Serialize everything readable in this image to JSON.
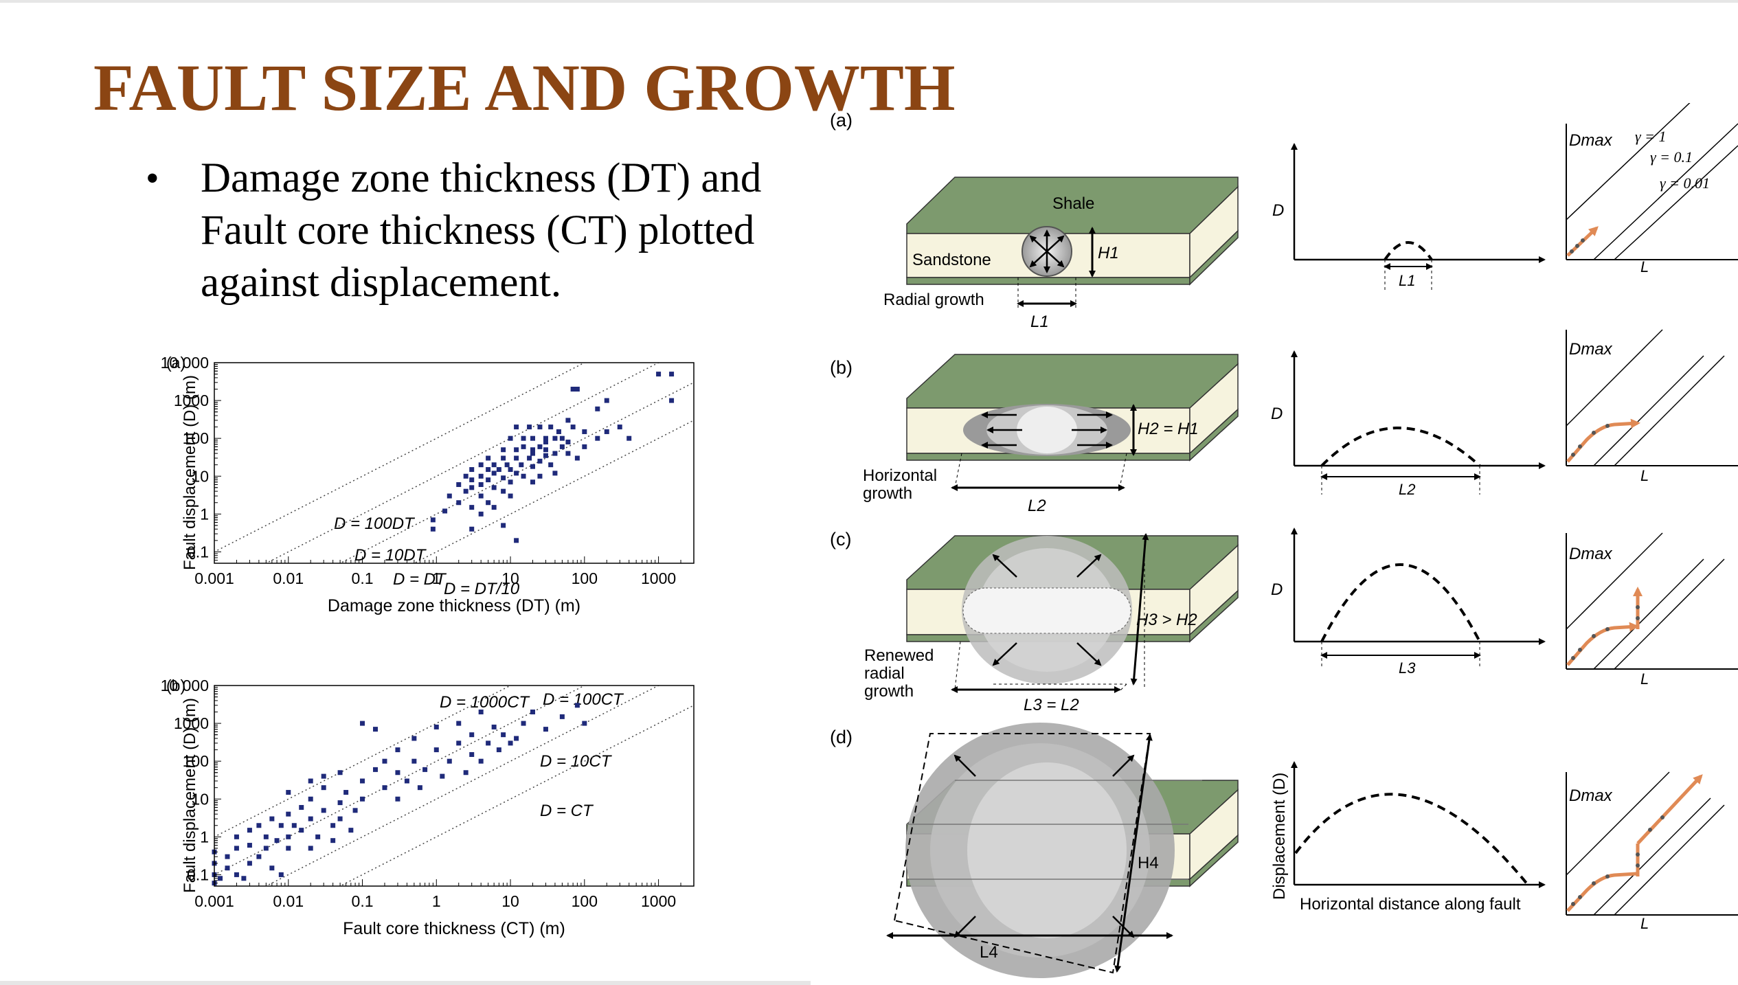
{
  "slide": {
    "title": "FAULT SIZE AND GROWTH",
    "bullet_lines": [
      "Damage zone thickness (DT) and",
      "Fault core thickness (CT) plotted",
      "against displacement."
    ]
  },
  "colors": {
    "title": "#8b4513",
    "points": "#1f2a7a",
    "shale": "#7d9a6e",
    "sandstone": "#f6f3de",
    "arrow_orange": "#e08a55"
  },
  "chart_data": [
    {
      "type": "scatter",
      "panel_label": "(a)",
      "xlabel": "Damage zone thickness (DT) (m)",
      "ylabel": "Fault displacement (D) (m)",
      "xscale": "log",
      "yscale": "log",
      "xlim": [
        0.001,
        3000
      ],
      "ylim": [
        0.05,
        10000
      ],
      "xticks": [
        "0.001",
        "0.01",
        "0.1",
        "1",
        "10",
        "100",
        "1000"
      ],
      "yticks": [
        "0.1",
        "1",
        "10",
        "100",
        "1000",
        "10 000"
      ],
      "lines": [
        {
          "label": "D = 100DT",
          "ratio": 100
        },
        {
          "label": "D = 10DT",
          "ratio": 10
        },
        {
          "label": "D = DT",
          "ratio": 1
        },
        {
          "label": "D = DT/10",
          "ratio": 0.1
        }
      ],
      "points": [
        [
          0.9,
          0.4
        ],
        [
          0.9,
          0.7
        ],
        [
          1.3,
          1.2
        ],
        [
          2,
          2
        ],
        [
          1.5,
          3
        ],
        [
          2.5,
          4
        ],
        [
          3,
          5
        ],
        [
          2,
          6
        ],
        [
          4,
          6
        ],
        [
          3,
          8
        ],
        [
          5,
          8
        ],
        [
          2.5,
          10
        ],
        [
          4,
          10
        ],
        [
          6,
          12
        ],
        [
          8,
          9
        ],
        [
          3,
          15
        ],
        [
          5,
          15
        ],
        [
          7,
          15
        ],
        [
          10,
          15
        ],
        [
          12,
          12
        ],
        [
          4,
          20
        ],
        [
          6,
          20
        ],
        [
          9,
          20
        ],
        [
          14,
          20
        ],
        [
          20,
          18
        ],
        [
          5,
          30
        ],
        [
          8,
          30
        ],
        [
          12,
          30
        ],
        [
          18,
          30
        ],
        [
          25,
          25
        ],
        [
          30,
          35
        ],
        [
          8,
          50
        ],
        [
          12,
          50
        ],
        [
          20,
          50
        ],
        [
          30,
          50
        ],
        [
          40,
          40
        ],
        [
          50,
          60
        ],
        [
          10,
          100
        ],
        [
          15,
          100
        ],
        [
          20,
          100
        ],
        [
          30,
          100
        ],
        [
          40,
          100
        ],
        [
          50,
          100
        ],
        [
          60,
          80
        ],
        [
          12,
          200
        ],
        [
          18,
          200
        ],
        [
          25,
          200
        ],
        [
          35,
          200
        ],
        [
          45,
          150
        ],
        [
          70,
          200
        ],
        [
          100,
          150
        ],
        [
          60,
          300
        ],
        [
          70,
          2000
        ],
        [
          80,
          2000
        ],
        [
          150,
          600
        ],
        [
          200,
          1000
        ],
        [
          1000,
          5000
        ],
        [
          1500,
          5000
        ],
        [
          1500,
          1000
        ],
        [
          3,
          1.5
        ],
        [
          4,
          3
        ],
        [
          6,
          5
        ],
        [
          10,
          7
        ],
        [
          15,
          10
        ],
        [
          20,
          7
        ],
        [
          25,
          10
        ],
        [
          35,
          20
        ],
        [
          40,
          12
        ],
        [
          60,
          40
        ],
        [
          80,
          30
        ],
        [
          100,
          60
        ],
        [
          150,
          100
        ],
        [
          200,
          150
        ],
        [
          300,
          200
        ],
        [
          400,
          100
        ],
        [
          20,
          40
        ],
        [
          25,
          60
        ],
        [
          30,
          80
        ],
        [
          15,
          60
        ],
        [
          8,
          4
        ],
        [
          10,
          3
        ],
        [
          5,
          2
        ],
        [
          6,
          1.5
        ],
        [
          4,
          1
        ],
        [
          8,
          0.5
        ],
        [
          12,
          0.2
        ],
        [
          3,
          0.4
        ]
      ]
    },
    {
      "type": "scatter",
      "panel_label": "(b)",
      "xlabel": "Fault core thickness (CT) (m)",
      "ylabel": "Fault displacement (D) (m)",
      "xscale": "log",
      "yscale": "log",
      "xlim": [
        0.001,
        3000
      ],
      "ylim": [
        0.05,
        10000
      ],
      "xticks": [
        "0.001",
        "0.01",
        "0.1",
        "1",
        "10",
        "100",
        "1000"
      ],
      "yticks": [
        "0.1",
        "1",
        "10",
        "100",
        "1000",
        "10 000"
      ],
      "lines": [
        {
          "label": "D = 1000CT",
          "ratio": 1000
        },
        {
          "label": "D = 100CT",
          "ratio": 100
        },
        {
          "label": "D = 10CT",
          "ratio": 10
        },
        {
          "label": "D = CT",
          "ratio": 1
        }
      ],
      "points": [
        [
          0.001,
          0.1
        ],
        [
          0.001,
          0.2
        ],
        [
          0.001,
          0.4
        ],
        [
          0.0012,
          0.08
        ],
        [
          0.0015,
          0.15
        ],
        [
          0.0015,
          0.3
        ],
        [
          0.002,
          0.1
        ],
        [
          0.002,
          0.5
        ],
        [
          0.002,
          1
        ],
        [
          0.003,
          0.2
        ],
        [
          0.003,
          0.6
        ],
        [
          0.003,
          1.5
        ],
        [
          0.004,
          0.3
        ],
        [
          0.004,
          2
        ],
        [
          0.005,
          0.5
        ],
        [
          0.005,
          1
        ],
        [
          0.006,
          3
        ],
        [
          0.007,
          0.8
        ],
        [
          0.008,
          2
        ],
        [
          0.01,
          0.5
        ],
        [
          0.01,
          1
        ],
        [
          0.01,
          4
        ],
        [
          0.012,
          2
        ],
        [
          0.015,
          1.5
        ],
        [
          0.015,
          6
        ],
        [
          0.02,
          3
        ],
        [
          0.02,
          10
        ],
        [
          0.025,
          1
        ],
        [
          0.03,
          5
        ],
        [
          0.03,
          20
        ],
        [
          0.04,
          2
        ],
        [
          0.05,
          8
        ],
        [
          0.05,
          3
        ],
        [
          0.06,
          15
        ],
        [
          0.08,
          5
        ],
        [
          0.1,
          30
        ],
        [
          0.1,
          10
        ],
        [
          0.15,
          60
        ],
        [
          0.2,
          20
        ],
        [
          0.2,
          100
        ],
        [
          0.3,
          50
        ],
        [
          0.3,
          200
        ],
        [
          0.4,
          30
        ],
        [
          0.5,
          100
        ],
        [
          0.5,
          400
        ],
        [
          0.7,
          60
        ],
        [
          1,
          200
        ],
        [
          1,
          800
        ],
        [
          1.5,
          100
        ],
        [
          2,
          300
        ],
        [
          2,
          1000
        ],
        [
          3,
          150
        ],
        [
          3,
          500
        ],
        [
          4,
          2000
        ],
        [
          5,
          300
        ],
        [
          6,
          800
        ],
        [
          8,
          500
        ],
        [
          10,
          300
        ],
        [
          15,
          1000
        ],
        [
          20,
          2000
        ],
        [
          30,
          700
        ],
        [
          50,
          1500
        ],
        [
          80,
          3000
        ],
        [
          100,
          1000
        ],
        [
          0.1,
          1000
        ],
        [
          0.15,
          700
        ],
        [
          0.05,
          50
        ],
        [
          0.008,
          0.1
        ],
        [
          0.006,
          0.15
        ],
        [
          0.0025,
          0.08
        ],
        [
          0.001,
          0.06
        ],
        [
          0.02,
          0.5
        ],
        [
          0.04,
          0.8
        ],
        [
          0.07,
          1.5
        ],
        [
          0.3,
          10
        ],
        [
          0.6,
          20
        ],
        [
          1.2,
          40
        ],
        [
          2.5,
          50
        ],
        [
          4,
          100
        ],
        [
          7,
          200
        ],
        [
          12,
          400
        ],
        [
          0.02,
          30
        ],
        [
          0.03,
          40
        ],
        [
          0.01,
          15
        ]
      ]
    }
  ],
  "right_figure": {
    "panels": [
      {
        "label": "(a)",
        "layer_top": "Shale",
        "layer_bottom": "Sandstone",
        "growth": "Radial growth",
        "height_label": "H1",
        "length_label": "L1",
        "graph_y": "D",
        "dmax": "Dmax",
        "axis_L": "L",
        "gammas": [
          "γ = 1",
          "γ = 0.1",
          "γ = 0.01"
        ]
      },
      {
        "label": "(b)",
        "growth_lines": [
          "Horizontal",
          "growth"
        ],
        "height_label": "H2 = H1",
        "length_label": "L2",
        "graph_y": "D",
        "dmax": "Dmax",
        "axis_L": "L"
      },
      {
        "label": "(c)",
        "growth_lines": [
          "Renewed",
          "radial",
          "growth"
        ],
        "height_label": "H3 > H2",
        "length_label": "L3 = L2",
        "length_label_graph": "L3",
        "graph_y": "D",
        "dmax": "Dmax",
        "axis_L": "L"
      },
      {
        "label": "(d)",
        "height_label": "H4",
        "length_label": "L4",
        "graph_y": "Displacement (D)",
        "graph_x": "Horizontal distance along fault",
        "dmax": "Dmax",
        "axis_L": "L"
      }
    ]
  }
}
